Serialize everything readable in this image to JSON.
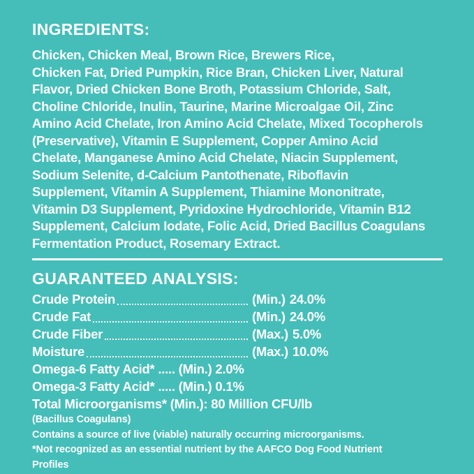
{
  "page": {
    "background_color": "#45BEB9",
    "text_color": "#FFFFFF"
  },
  "ingredients": {
    "heading": "INGREDIENTS:",
    "lines": [
      "Chicken, Chicken Meal, Brown Rice, Brewers Rice,",
      "Chicken Fat, Dried Pumpkin, Rice Bran, Chicken Liver, Natural",
      "Flavor, Dried Chicken Bone Broth, Potassium Chloride, Salt,",
      "Choline Chloride, Inulin, Taurine, Marine Microalgae Oil, Zinc",
      "Amino Acid Chelate, Iron Amino Acid Chelate, Mixed Tocopherols",
      "(Preservative), Vitamin E Supplement, Copper Amino Acid",
      "Chelate, Manganese Amino Acid Chelate, Niacin Supplement,",
      "Sodium Selenite, d-Calcium Pantothenate, Riboflavin",
      "Supplement, Vitamin A Supplement, Thiamine Mononitrate,",
      "Vitamin D3 Supplement, Pyridoxine Hydrochloride, Vitamin B12",
      "Supplement, Calcium Iodate, Folic Acid, Dried Bacillus Coagulans",
      "Fermentation Product, Rosemary Extract."
    ]
  },
  "analysis": {
    "heading": "GUARANTEED ANALYSIS:",
    "dotted_rows": [
      {
        "label": "Crude Protein",
        "qualifier": "(Min.)",
        "value": "24.0%"
      },
      {
        "label": "Crude Fat",
        "qualifier": "(Min.)",
        "value": "24.0%"
      },
      {
        "label": "Crude Fiber",
        "qualifier": "(Max.)",
        "value": "5.0%"
      },
      {
        "label": "Moisture",
        "qualifier": "(Max.)",
        "value": "10.0%"
      }
    ],
    "inline_rows": [
      "Omega-6 Fatty Acid* ..... (Min.) 2.0%",
      "Omega-3 Fatty Acid* ..... (Min.) 0.1%",
      "Total Microorganisms* (Min.): 80 Million CFU/lb"
    ],
    "footnotes": [
      "(Bacillus Coagulans)",
      "Contains a source of live (viable) naturally occurring microorganisms.",
      "*Not recognized as an essential nutrient by the AAFCO Dog Food Nutrient",
      "Profiles"
    ]
  }
}
